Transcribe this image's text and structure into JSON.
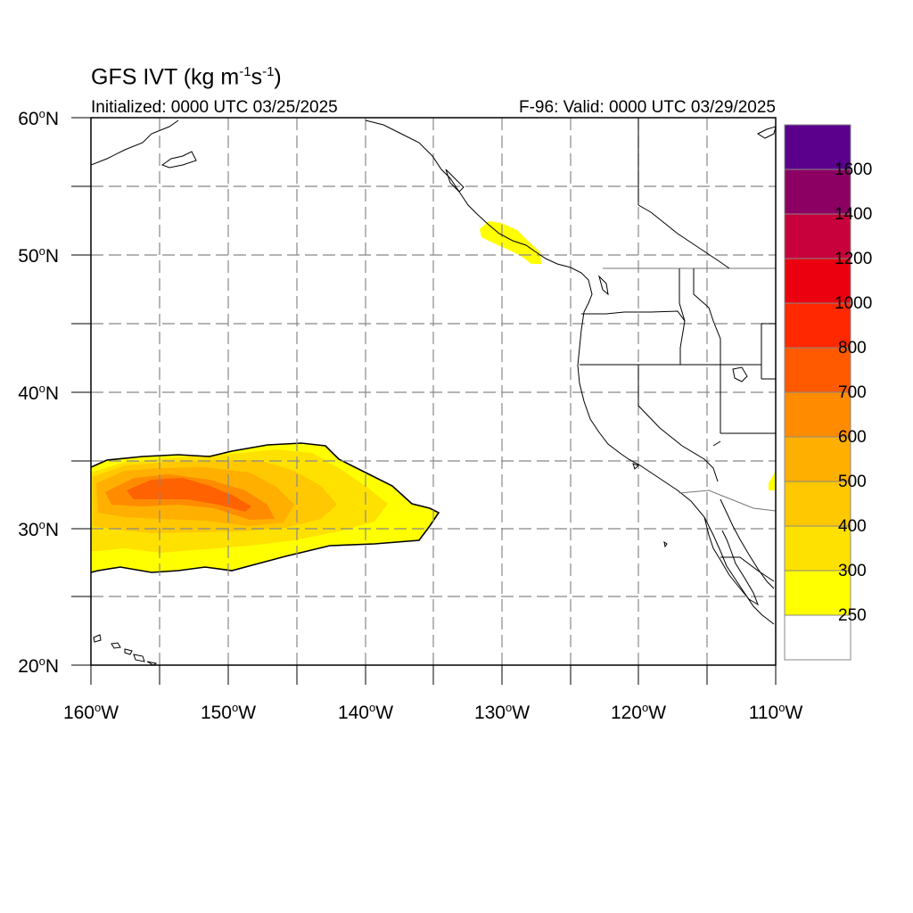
{
  "map": {
    "title_main": "GFS IVT (kg m",
    "title_sup1": "-1",
    "title_mid": "s",
    "title_sup2": "-1",
    "title_end": ")",
    "initialized": "Initialized: 0000 UTC 03/25/2025",
    "valid": "F-96: Valid: 0000 UTC 03/29/2025",
    "lat_labels": [
      {
        "num": "60",
        "deg": "o",
        "hem": "N"
      },
      {
        "num": "50",
        "deg": "o",
        "hem": "N"
      },
      {
        "num": "40",
        "deg": "o",
        "hem": "N"
      },
      {
        "num": "30",
        "deg": "o",
        "hem": "N"
      },
      {
        "num": "20",
        "deg": "o",
        "hem": "N"
      }
    ],
    "lon_labels": [
      {
        "num": "160",
        "deg": "o",
        "hem": "W"
      },
      {
        "num": "150",
        "deg": "o",
        "hem": "W"
      },
      {
        "num": "140",
        "deg": "o",
        "hem": "W"
      },
      {
        "num": "130",
        "deg": "o",
        "hem": "W"
      },
      {
        "num": "120",
        "deg": "o",
        "hem": "W"
      },
      {
        "num": "110",
        "deg": "o",
        "hem": "W"
      }
    ],
    "extent": {
      "lon_min": -160,
      "lon_max": -110,
      "lat_min": 20,
      "lat_max": 60
    },
    "gridlines": "dashed",
    "colorbar": {
      "labels": [
        "250",
        "300",
        "400",
        "500",
        "600",
        "700",
        "800",
        "1000",
        "1200",
        "1400",
        "1600"
      ],
      "colors": [
        "#ffffff",
        "#ffff00",
        "#ffe100",
        "#ffc800",
        "#ffaf00",
        "#ff8c00",
        "#ff5a00",
        "#ff2800",
        "#eb0010",
        "#c8003c",
        "#8c0064",
        "#5a008c"
      ],
      "placement": "right"
    }
  }
}
